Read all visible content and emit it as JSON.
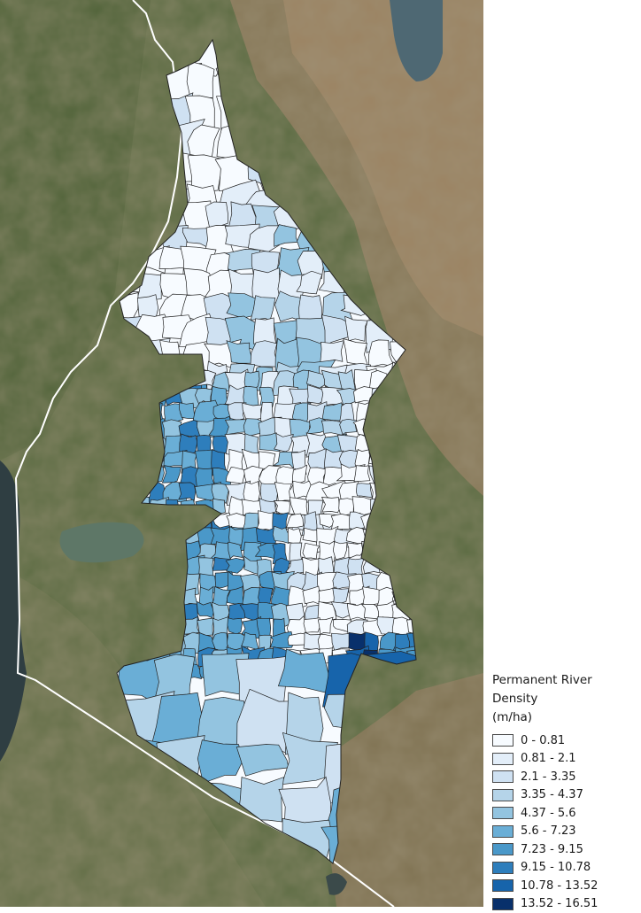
{
  "legend": {
    "title_line1": "Permanent River Density",
    "title_line2": "(m/ha)",
    "classes": [
      {
        "label": "0 - 0.81",
        "color": "#f7fbff"
      },
      {
        "label": "0.81 - 2.1",
        "color": "#e3eef9"
      },
      {
        "label": "2.1 - 3.35",
        "color": "#cfe1f2"
      },
      {
        "label": "3.35 - 4.37",
        "color": "#b5d4e9"
      },
      {
        "label": "4.37 - 5.6",
        "color": "#93c4e0"
      },
      {
        "label": "5.6 - 7.23",
        "color": "#6aaed6"
      },
      {
        "label": "7.23 - 9.15",
        "color": "#4a98c9"
      },
      {
        "label": "9.15 - 10.78",
        "color": "#2e7ebc"
      },
      {
        "label": "10.78 - 13.52",
        "color": "#1764ab"
      },
      {
        "label": "13.52 - 16.51",
        "color": "#08306b"
      }
    ]
  },
  "map": {
    "basemap": "satellite-imagery",
    "boundary_line_color": "#ffffff",
    "unit_outline_color": "#222222"
  }
}
